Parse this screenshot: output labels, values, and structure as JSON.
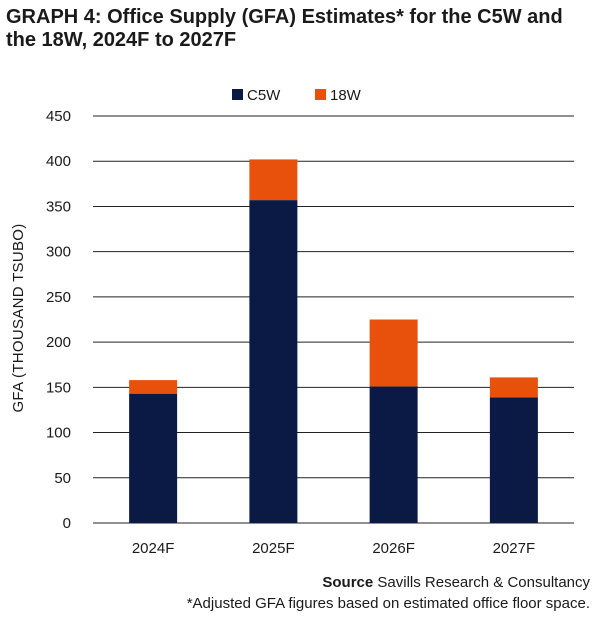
{
  "header": {
    "title": "GRAPH 4: Office Supply (GFA) Estimates* for the C5W and the 18W, 2024F to 2027F"
  },
  "footer": {
    "source_label": "Source",
    "source_text": "Savills Research & Consultancy",
    "note": "*Adjusted GFA figures based on estimated office floor space."
  },
  "chart_data": {
    "type": "bar",
    "stacked": true,
    "title": "GRAPH 4: Office Supply (GFA) Estimates* for the C5W and the 18W, 2024F to 2027F",
    "xlabel": "",
    "ylabel": "GFA (THOUSAND TSUBO)",
    "categories": [
      "2024F",
      "2025F",
      "2026F",
      "2027F"
    ],
    "series": [
      {
        "name": "C5W",
        "color": "#0b1a45",
        "values": [
          143,
          357,
          151,
          139
        ]
      },
      {
        "name": "18W",
        "color": "#e8510b",
        "values": [
          15,
          45,
          74,
          22
        ]
      }
    ],
    "ylim": [
      0,
      450
    ],
    "yticks": [
      "0",
      "50",
      "100",
      "150",
      "200",
      "250",
      "300",
      "350",
      "400",
      "450"
    ],
    "grid": true,
    "legend_position": "top"
  }
}
